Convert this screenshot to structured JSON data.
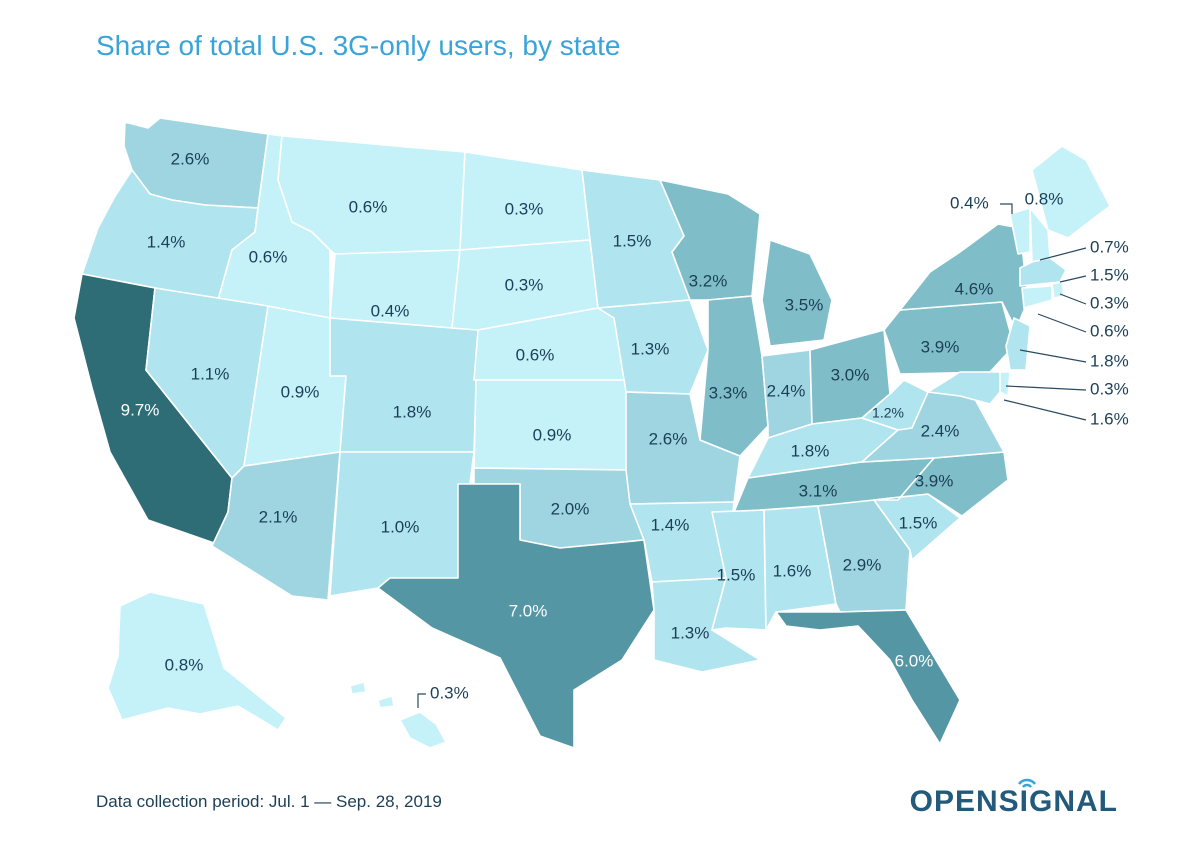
{
  "title": "Share of total U.S. 3G-only users, by state",
  "footnote": "Data collection period: Jul. 1 — Sep. 28, 2019",
  "brand": "OPENSIGNAL",
  "colors": {
    "title": "#3aa3d8",
    "text": "#1b3f57",
    "brand": "#23597a",
    "scale": [
      "#c5f1f9",
      "#b0e4ee",
      "#9ed5e0",
      "#7fbec9",
      "#5496a3",
      "#2e6c76"
    ]
  },
  "states": [
    {
      "code": "WA",
      "value": "2.6%"
    },
    {
      "code": "OR",
      "value": "1.4%"
    },
    {
      "code": "CA",
      "value": "9.7%"
    },
    {
      "code": "ID",
      "value": "0.6%"
    },
    {
      "code": "NV",
      "value": "1.1%"
    },
    {
      "code": "MT",
      "value": "0.6%"
    },
    {
      "code": "WY",
      "value": "0.4%"
    },
    {
      "code": "UT",
      "value": "0.9%"
    },
    {
      "code": "AZ",
      "value": "2.1%"
    },
    {
      "code": "CO",
      "value": "1.8%"
    },
    {
      "code": "NM",
      "value": "1.0%"
    },
    {
      "code": "ND",
      "value": "0.3%"
    },
    {
      "code": "SD",
      "value": "0.3%"
    },
    {
      "code": "NE",
      "value": "0.6%"
    },
    {
      "code": "KS",
      "value": "0.9%"
    },
    {
      "code": "OK",
      "value": "2.0%"
    },
    {
      "code": "TX",
      "value": "7.0%"
    },
    {
      "code": "MN",
      "value": "1.5%"
    },
    {
      "code": "IA",
      "value": "1.3%"
    },
    {
      "code": "MO",
      "value": "2.6%"
    },
    {
      "code": "AR",
      "value": "1.4%"
    },
    {
      "code": "LA",
      "value": "1.3%"
    },
    {
      "code": "WI",
      "value": "3.2%"
    },
    {
      "code": "IL",
      "value": "3.3%"
    },
    {
      "code": "MI",
      "value": "3.5%"
    },
    {
      "code": "IN",
      "value": "2.4%"
    },
    {
      "code": "OH",
      "value": "3.0%"
    },
    {
      "code": "KY",
      "value": "1.8%"
    },
    {
      "code": "TN",
      "value": "3.1%"
    },
    {
      "code": "MS",
      "value": "1.5%"
    },
    {
      "code": "AL",
      "value": "1.6%"
    },
    {
      "code": "GA",
      "value": "2.9%"
    },
    {
      "code": "FL",
      "value": "6.0%"
    },
    {
      "code": "SC",
      "value": "1.5%"
    },
    {
      "code": "NC",
      "value": "3.9%"
    },
    {
      "code": "VA",
      "value": "2.4%"
    },
    {
      "code": "WV",
      "value": "1.2%"
    },
    {
      "code": "PA",
      "value": "3.9%"
    },
    {
      "code": "NY",
      "value": "4.6%"
    },
    {
      "code": "ME",
      "value": "0.8%"
    },
    {
      "code": "VT",
      "value": "0.4%"
    },
    {
      "code": "NH",
      "value": "0.7%"
    },
    {
      "code": "MA",
      "value": "1.5%"
    },
    {
      "code": "RI",
      "value": "0.3%"
    },
    {
      "code": "CT",
      "value": "0.6%"
    },
    {
      "code": "NJ",
      "value": "1.8%"
    },
    {
      "code": "DE",
      "value": "0.3%"
    },
    {
      "code": "MD",
      "value": "1.6%"
    },
    {
      "code": "AK",
      "value": "0.8%"
    },
    {
      "code": "HI",
      "value": "0.3%"
    }
  ]
}
